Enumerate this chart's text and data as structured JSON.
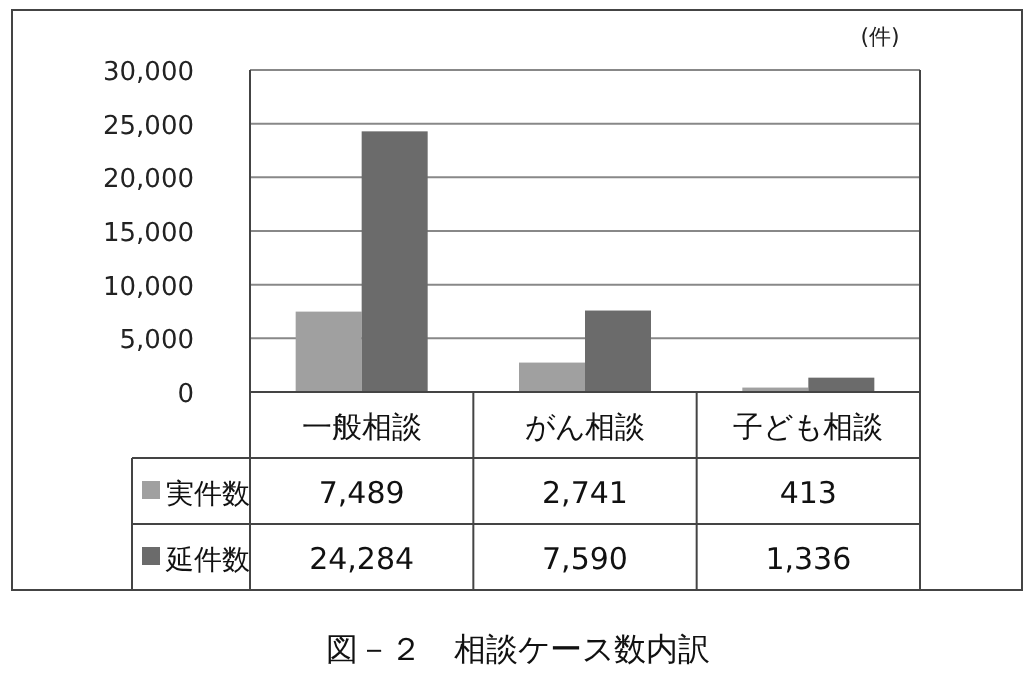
{
  "chart_data": {
    "type": "bar",
    "title": "図－２　相談ケース数内訳",
    "categories": [
      "一般相談",
      "がん相談",
      "子ども相談"
    ],
    "series": [
      {
        "name": "実件数",
        "color": "#a0a0a0",
        "values": [
          7489,
          2741,
          413
        ],
        "value_labels": [
          "7,489",
          "2,741",
          "413"
        ]
      },
      {
        "name": "延件数",
        "color": "#6b6b6b",
        "values": [
          24284,
          7590,
          1336
        ],
        "value_labels": [
          "24,284",
          "7,590",
          "1,336"
        ]
      }
    ],
    "ylim": [
      0,
      30000
    ],
    "yticks": [
      0,
      {
        "value": 5000,
        "label": "5,000"
      },
      {
        "value": 10000,
        "label": "10,000"
      },
      {
        "value": 15000,
        "label": "15,000"
      },
      {
        "value": 20000,
        "label": "20,000"
      },
      {
        "value": 25000,
        "label": "25,000"
      },
      {
        "value": 30000,
        "label": "30,000"
      }
    ],
    "grid": "y",
    "legend": "bottom left",
    "annotations": [
      "(件)"
    ]
  }
}
